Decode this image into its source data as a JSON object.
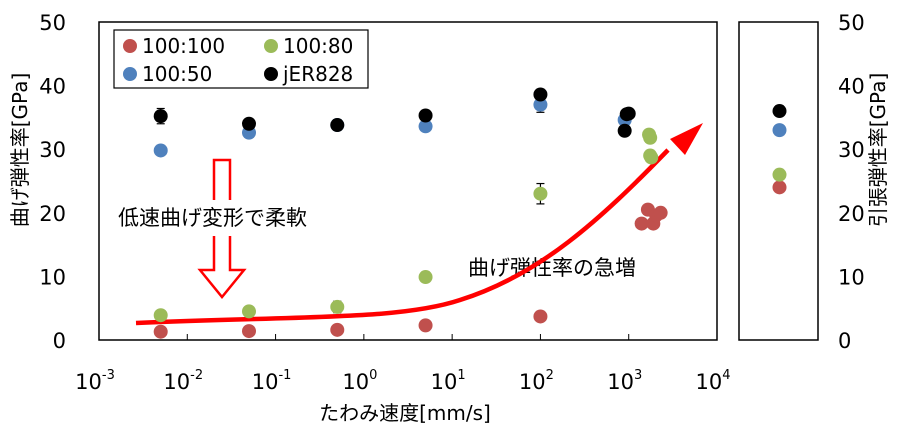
{
  "chart_data": {
    "type": "scatter",
    "xlabel": "たわみ速度[mm/s]",
    "ylabel_left": "曲げ弾性率[GPa]",
    "ylabel_right": "引張弾性率[GPa]",
    "x_scale": "log",
    "xlim": [
      0.001,
      10000
    ],
    "ylim": [
      0,
      50
    ],
    "x_ticks": [
      {
        "base": "10",
        "exp": "-3",
        "value": 0.001
      },
      {
        "base": "10",
        "exp": "-2",
        "value": 0.01
      },
      {
        "base": "10",
        "exp": "-1",
        "value": 0.1
      },
      {
        "base": "10",
        "exp": "0",
        "value": 1
      },
      {
        "base": "10",
        "exp": "1",
        "value": 10
      },
      {
        "base": "10",
        "exp": "2",
        "value": 100
      },
      {
        "base": "10",
        "exp": "3",
        "value": 1000
      },
      {
        "base": "10",
        "exp": "4",
        "value": 10000
      }
    ],
    "y_ticks": [
      "0",
      "10",
      "20",
      "30",
      "40",
      "50"
    ],
    "legend_position": "top-left",
    "series": [
      {
        "name": "100:100",
        "color": "#c0504d",
        "points": [
          [
            0.005,
            1.3
          ],
          [
            0.05,
            1.4
          ],
          [
            0.5,
            1.6
          ],
          [
            5,
            2.3
          ],
          [
            100,
            3.7
          ],
          [
            1400,
            18.3
          ],
          [
            1650,
            20.5
          ],
          [
            1900,
            18.3
          ],
          [
            2050,
            19.6
          ],
          [
            2300,
            20.0
          ]
        ],
        "tensile": 24.0
      },
      {
        "name": "100:80",
        "color": "#9bbb59",
        "points": [
          [
            0.005,
            3.9
          ],
          [
            0.05,
            4.5
          ],
          [
            0.5,
            5.2
          ],
          [
            5,
            9.9
          ],
          [
            100,
            23.0
          ],
          [
            1700,
            32.3
          ],
          [
            1750,
            31.8
          ],
          [
            1750,
            29.0
          ],
          [
            1800,
            28.7
          ]
        ],
        "tensile": 26.0
      },
      {
        "name": "100:50",
        "color": "#4f81bd",
        "points": [
          [
            0.005,
            29.8
          ],
          [
            0.05,
            32.6
          ],
          [
            0.5,
            33.8
          ],
          [
            5,
            33.6
          ],
          [
            100,
            37.0
          ],
          [
            900,
            34.6
          ]
        ],
        "tensile": 33.0
      },
      {
        "name": "jER828",
        "color": "#000000",
        "points": [
          [
            0.005,
            35.2
          ],
          [
            0.05,
            34.0
          ],
          [
            0.5,
            33.8
          ],
          [
            5,
            35.3
          ],
          [
            100,
            38.6
          ],
          [
            900,
            32.9
          ],
          [
            950,
            35.5
          ],
          [
            1000,
            35.6
          ]
        ],
        "tensile": 36.0
      }
    ],
    "error_bars": [
      {
        "x": 0.005,
        "y": 35.2,
        "err": 1.2
      },
      {
        "x": 0.05,
        "y": 34.0,
        "err": 0.6
      },
      {
        "x": 0.5,
        "y": 33.8,
        "err": 0.8
      },
      {
        "x": 100,
        "y": 38.6,
        "err": 0.7
      },
      {
        "x": 100,
        "y": 37.0,
        "err": 1.2
      },
      {
        "x": 100,
        "y": 23.0,
        "err": 1.6
      },
      {
        "x": 0.5,
        "y": 5.2,
        "err": 0.9
      },
      {
        "x": 1000,
        "y": 35.6,
        "err": 0.5
      }
    ],
    "annotations": {
      "slow": "低速曲げ変形で柔軟",
      "surge": "曲げ弾性率の急増"
    },
    "colors": {
      "arrow": "#ff0000",
      "frame": "#000000"
    }
  }
}
